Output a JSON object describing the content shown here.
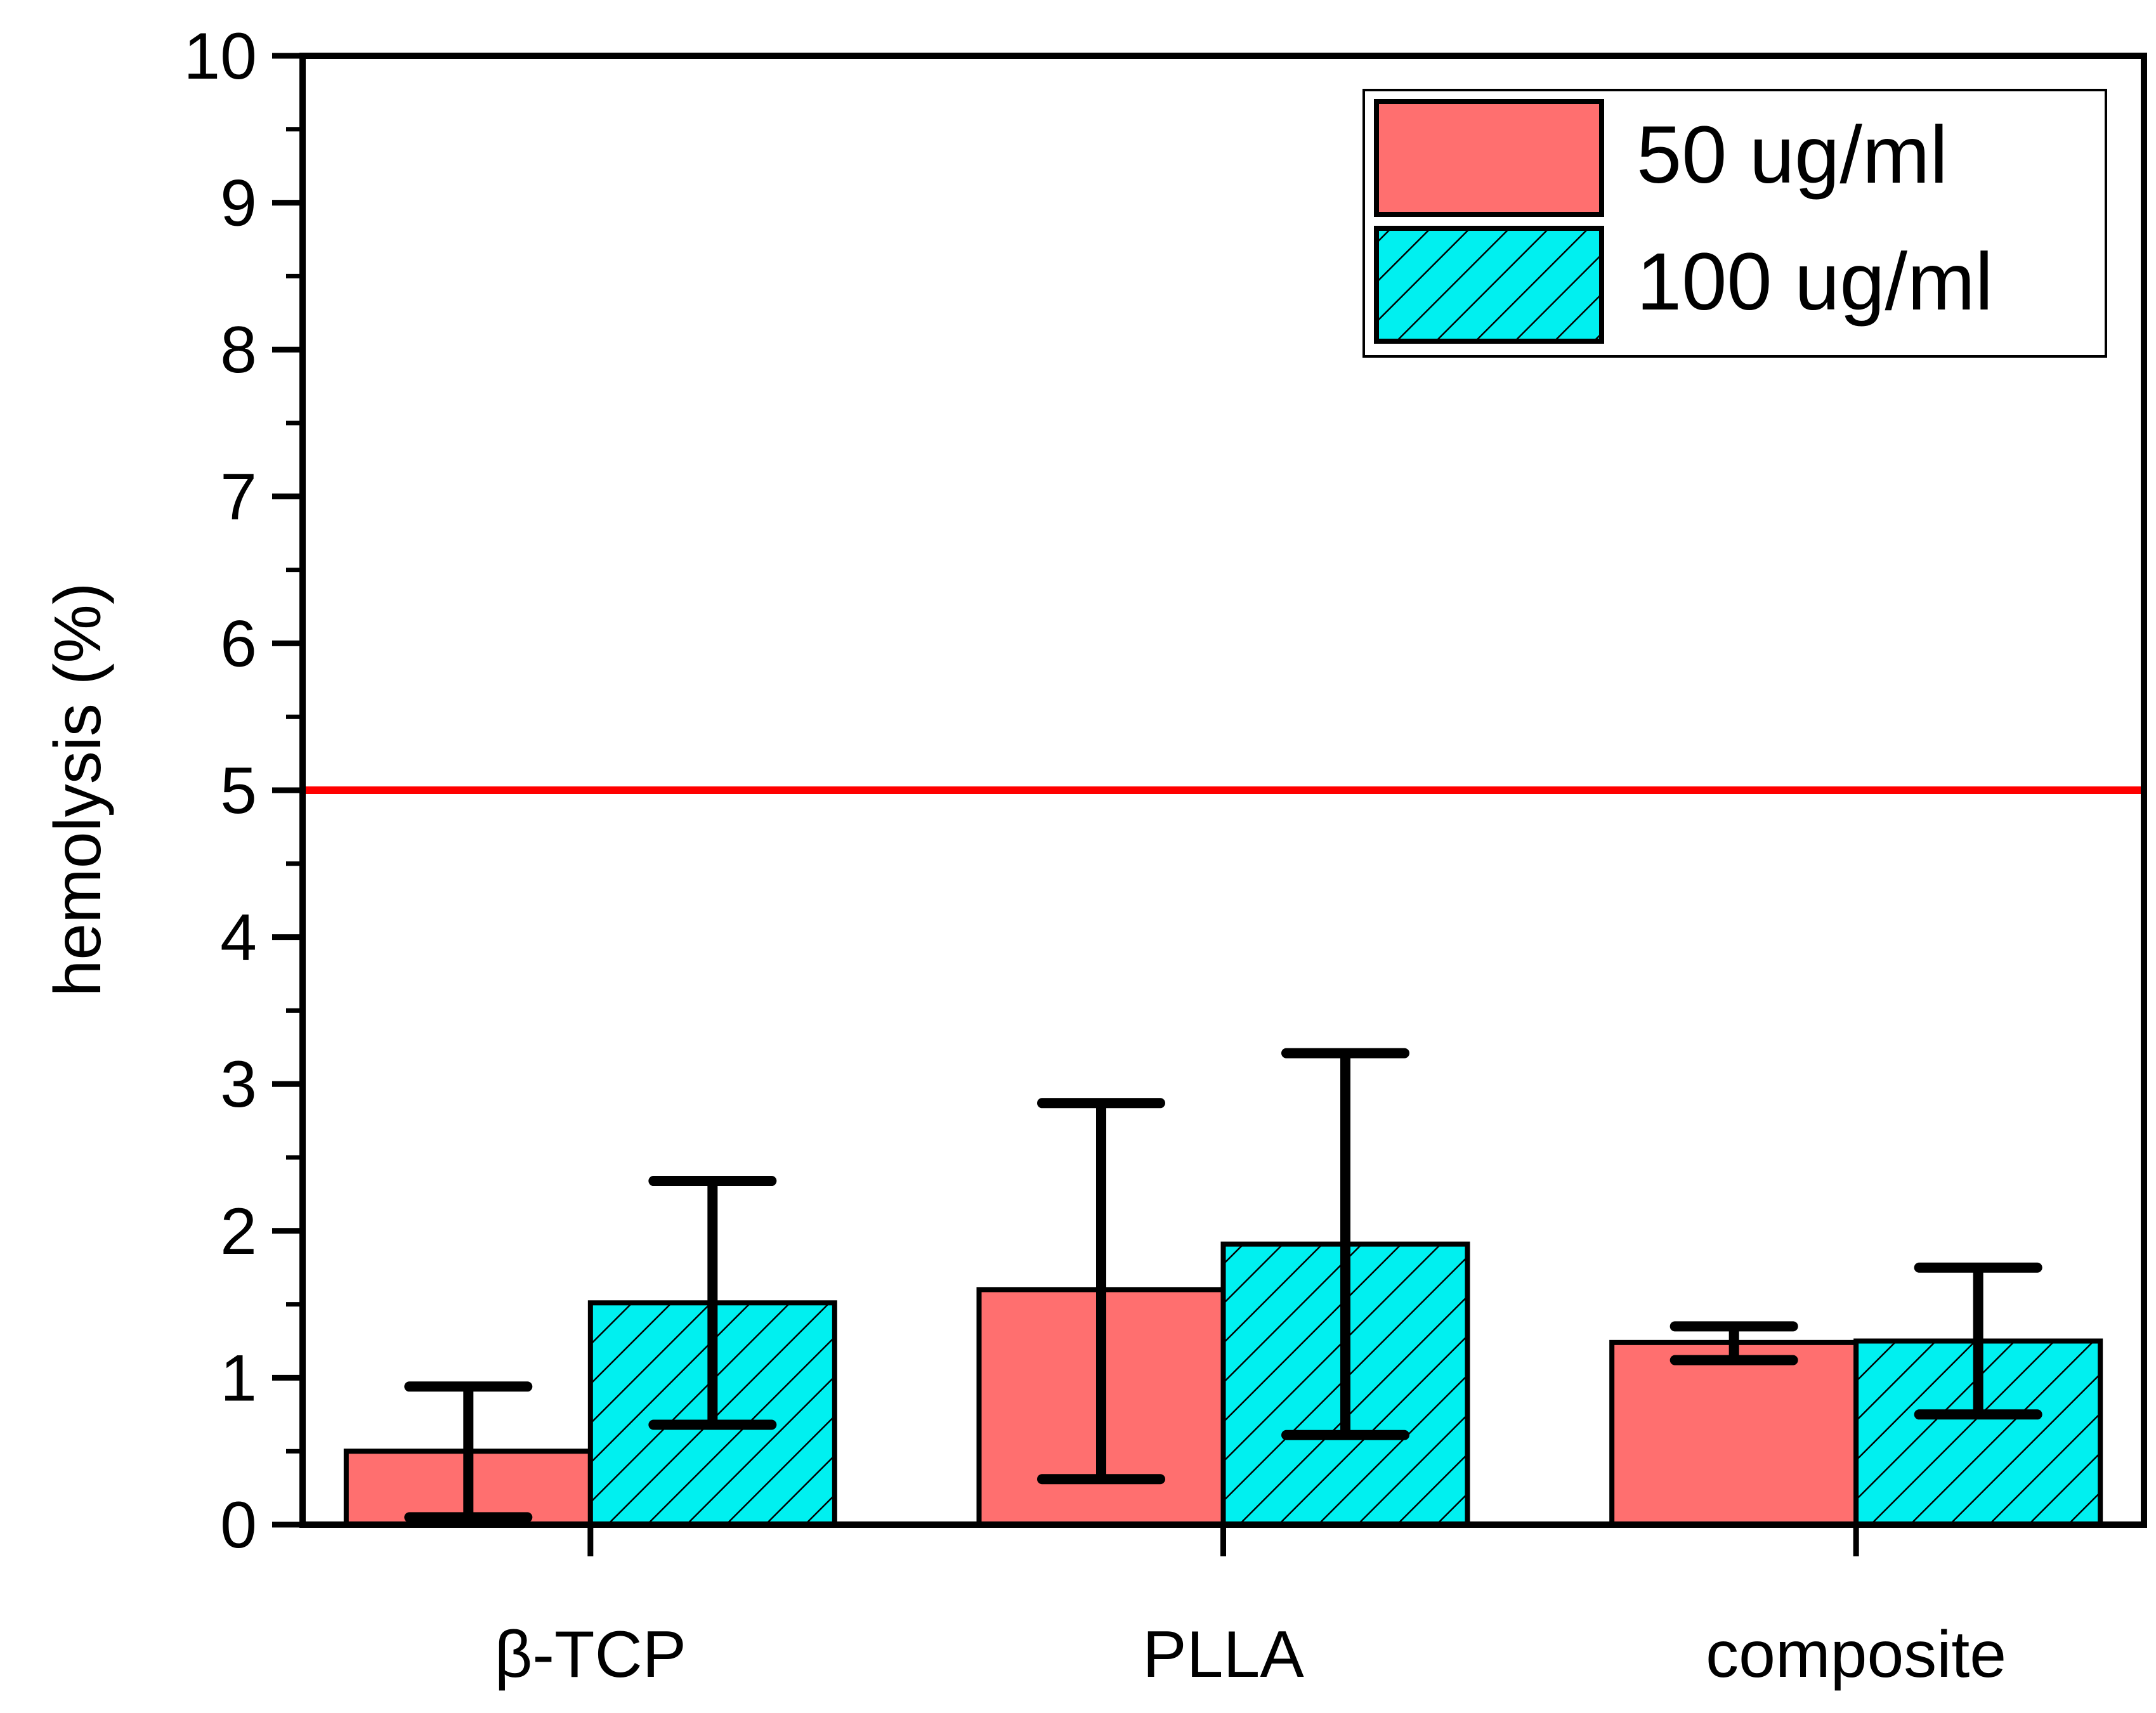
{
  "chart_data": {
    "type": "bar",
    "title": "",
    "xlabel": "",
    "ylabel": "hemolysis (%)",
    "ylim": [
      0,
      10
    ],
    "yticks": [
      0,
      1,
      2,
      3,
      4,
      5,
      6,
      7,
      8,
      9,
      10
    ],
    "ytick_labels": [
      "0",
      "1",
      "2",
      "3",
      "4",
      "5",
      "6",
      "7",
      "8",
      "9",
      "10"
    ],
    "categories": [
      "β-TCP",
      "PLLA",
      "composite"
    ],
    "series": [
      {
        "name": "50 ug/ml",
        "color": "#ff6f6f",
        "pattern": "solid",
        "values": [
          0.5,
          1.6,
          1.24
        ],
        "error_upper": [
          0.94,
          2.87,
          1.35
        ],
        "error_lower": [
          0.05,
          0.31,
          1.12
        ]
      },
      {
        "name": "100 ug/ml",
        "color": "#00f0f0",
        "pattern": "hatched",
        "values": [
          1.51,
          1.91,
          1.25
        ],
        "error_upper": [
          2.34,
          3.21,
          1.75
        ],
        "error_lower": [
          0.68,
          0.61,
          0.75
        ]
      }
    ],
    "reference_line": {
      "y": 5,
      "color": "#ff0000"
    },
    "legend": {
      "position": "top-right"
    },
    "grid": false
  }
}
